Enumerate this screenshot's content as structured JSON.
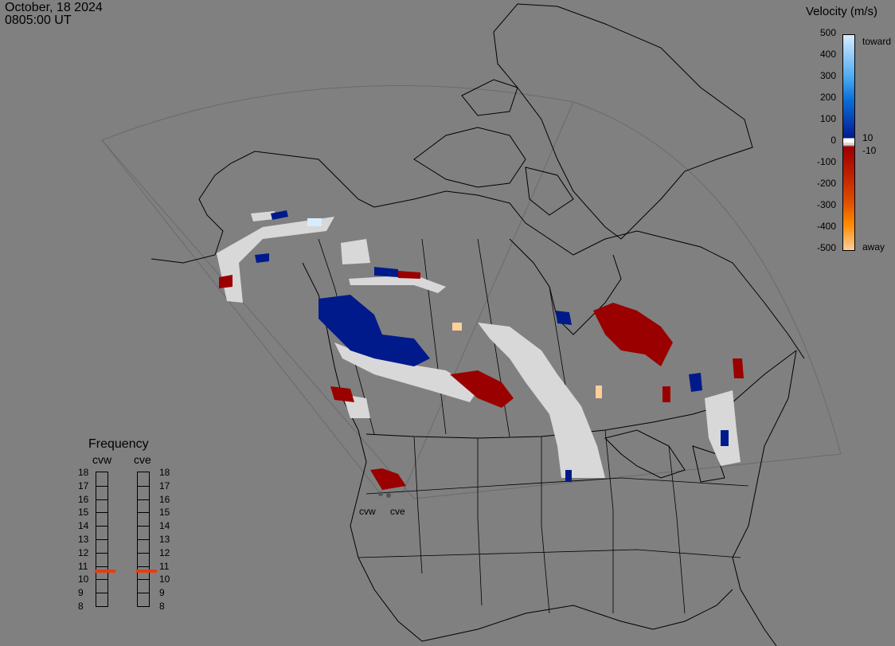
{
  "header": {
    "date": "October, 18 2024",
    "time": "0805:00 UT"
  },
  "velocity_scale": {
    "title": "Velocity (m/s)",
    "ticks": [
      "500",
      "400",
      "300",
      "200",
      "100",
      "0",
      "-100",
      "-200",
      "-300",
      "-400",
      "-500"
    ],
    "inner_ticks": [
      "10",
      "-10"
    ],
    "toward_label": "toward",
    "away_label": "away",
    "colors": [
      "#d6ecff",
      "#4aa8f0",
      "#0a6fd8",
      "#0a3fb0",
      "#001a8c",
      "#9a0000",
      "#c02000",
      "#e05000",
      "#ff8a00",
      "#ffcf9a"
    ],
    "ground_scatter_color": "#d8d8d8"
  },
  "frequency": {
    "title": "Frequency",
    "radars": [
      {
        "name": "cvw",
        "value_mhz": 10.6
      },
      {
        "name": "cve",
        "value_mhz": 10.6
      }
    ],
    "scale": [
      "18",
      "17",
      "16",
      "15",
      "14",
      "13",
      "12",
      "11",
      "10",
      "9",
      "8"
    ]
  },
  "sites": [
    {
      "name": "cvw"
    },
    {
      "name": "cve"
    }
  ]
}
